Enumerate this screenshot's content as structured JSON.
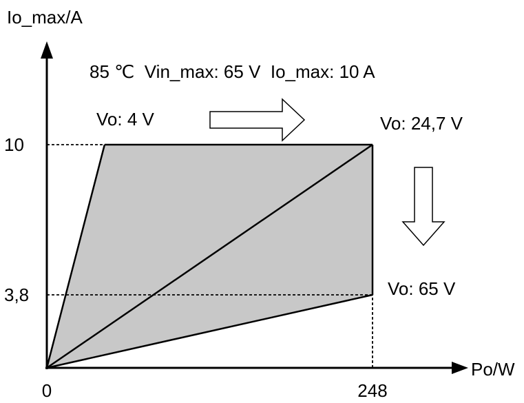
{
  "chart_data": {
    "type": "area",
    "xlabel": "Po/W",
    "ylabel": "Io_max/A",
    "xlim": [
      0,
      300
    ],
    "ylim": [
      0,
      12.5
    ],
    "x_ticks": [
      {
        "value": 0,
        "label": "0"
      },
      {
        "value": 248,
        "label": "248"
      }
    ],
    "y_ticks": [
      {
        "value": 10,
        "label": "10"
      },
      {
        "value": 3.8,
        "label": "3,8"
      }
    ],
    "region": {
      "fill": "#c8c8c8",
      "vertices": [
        [
          0,
          0
        ],
        [
          44,
          10
        ],
        [
          248,
          10
        ],
        [
          248,
          3.8
        ]
      ]
    },
    "lines": [
      {
        "name": "Vo: 4 V",
        "points": [
          [
            0,
            0
          ],
          [
            44,
            10
          ]
        ]
      },
      {
        "name": "Vo: 24,7 V",
        "points": [
          [
            0,
            0
          ],
          [
            248,
            10
          ]
        ]
      },
      {
        "name": "Vo: 65 V",
        "points": [
          [
            0,
            0
          ],
          [
            248,
            3.8
          ]
        ]
      }
    ],
    "reference_lines": [
      {
        "from": [
          0,
          10
        ],
        "to": [
          248,
          10
        ]
      },
      {
        "from": [
          0,
          3.8
        ],
        "to": [
          248,
          3.8
        ]
      },
      {
        "from": [
          248,
          0
        ],
        "to": [
          248,
          3.8
        ]
      }
    ],
    "annotations": {
      "conditions": "85 ℃  Vin_max: 65 V  Io_max: 10 A",
      "vo_low": "Vo: 4 V",
      "vo_mid": "Vo: 24,7 V",
      "vo_high": "Vo: 65 V"
    },
    "arrows": [
      {
        "name": "right-arrow",
        "direction": "right"
      },
      {
        "name": "down-arrow",
        "direction": "down"
      }
    ],
    "grid": false
  }
}
